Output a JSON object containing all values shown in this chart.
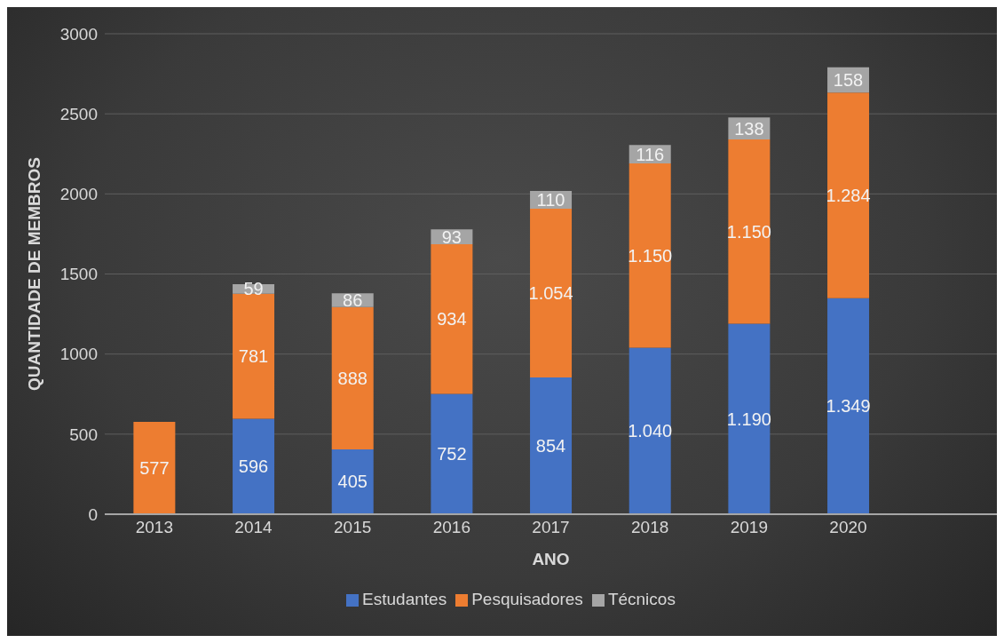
{
  "chart_data": {
    "type": "bar",
    "stacked": true,
    "xlabel": "ANO",
    "ylabel": "QUANTIDADE DE MEMBROS",
    "categories": [
      "2013",
      "2014",
      "2015",
      "2016",
      "2017",
      "2018",
      "2019",
      "2020",
      null
    ],
    "series": [
      {
        "name": "Estudantes",
        "color": "#4472c4",
        "values": [
          null,
          596,
          405,
          752,
          854,
          1040,
          1190,
          1349,
          null
        ],
        "value_labels": [
          null,
          "596",
          "405",
          "752",
          "854",
          "1.040",
          "1.190",
          "1.349",
          null
        ]
      },
      {
        "name": "Pesquisadores",
        "color": "#ed7d31",
        "values": [
          577,
          781,
          888,
          934,
          1054,
          1150,
          1150,
          1284,
          null
        ],
        "value_labels": [
          "577",
          "781",
          "888",
          "934",
          "1.054",
          "1.150",
          "1.150",
          "1.284",
          null
        ]
      },
      {
        "name": "Técnicos",
        "color": "#a5a5a5",
        "values": [
          null,
          59,
          86,
          93,
          110,
          116,
          138,
          158,
          null
        ],
        "value_labels": [
          null,
          "59",
          "86",
          "93",
          "110",
          "116",
          "138",
          "158",
          null
        ]
      }
    ],
    "ylim": [
      0,
      3000
    ],
    "yticks": [
      0,
      500,
      1000,
      1500,
      2000,
      2500,
      3000
    ],
    "grid": "y",
    "legend": "bottom"
  }
}
